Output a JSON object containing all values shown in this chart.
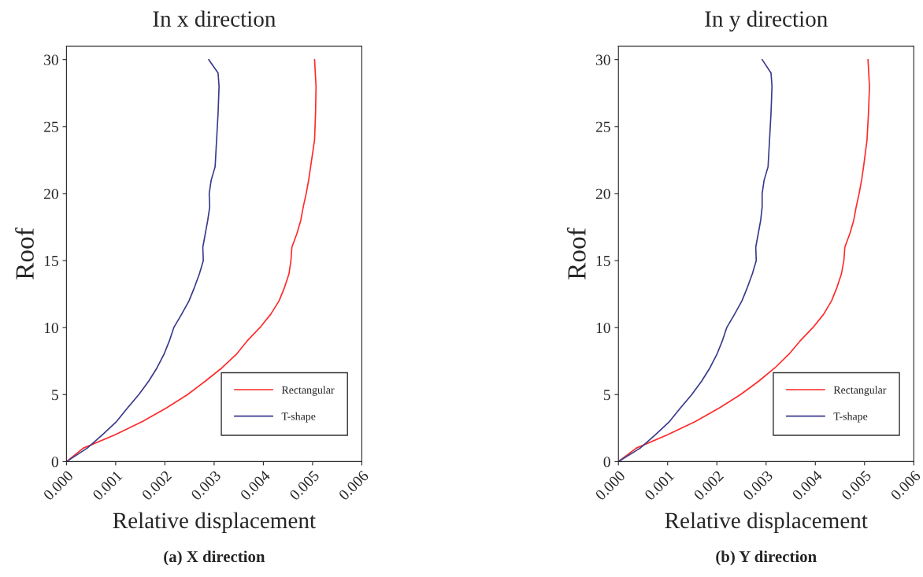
{
  "chart_data": [
    {
      "type": "line",
      "title": "In x direction",
      "xlabel": "Relative displacement",
      "ylabel": "Roof",
      "annotations": [
        "(a) X direction"
      ],
      "xlim": [
        0,
        0.006
      ],
      "xticks": [
        {
          "value": 0,
          "label": "0.000"
        },
        {
          "value": 0.001,
          "label": "0.001"
        },
        {
          "value": 0.002,
          "label": "0.002"
        },
        {
          "value": 0.003,
          "label": "0.003"
        },
        {
          "value": 0.004,
          "label": "0.004"
        },
        {
          "value": 0.005,
          "label": "0.005"
        },
        {
          "value": 0.006,
          "label": "0.006"
        }
      ],
      "ylim": [
        0,
        31
      ],
      "yticks": [
        0,
        5,
        10,
        15,
        20,
        25,
        30
      ],
      "grid": false,
      "legend": "bottom right",
      "series": [
        {
          "name": "Rectangular",
          "color": "#ff2a2a",
          "x": [
            0,
            0.00034,
            0.00099,
            0.00155,
            0.00203,
            0.00246,
            0.00282,
            0.00316,
            0.00345,
            0.00367,
            0.00393,
            0.00415,
            0.00432,
            0.00443,
            0.00452,
            0.00456,
            0.00458,
            0.00468,
            0.00476,
            0.00481,
            0.00487,
            0.00492,
            0.00496,
            0.00504,
            0.00506,
            0.00507,
            0.00504
          ],
          "values": [
            0,
            1,
            2,
            3,
            4,
            5,
            6,
            7,
            8,
            9,
            10,
            11,
            12,
            13,
            14,
            15,
            16,
            17,
            18,
            19,
            20,
            21,
            22,
            24,
            26,
            28,
            30
          ]
        },
        {
          "name": "T-shape",
          "color": "#3a3a8c",
          "x": [
            0,
            0.00042,
            0.00073,
            0.00102,
            0.00124,
            0.00147,
            0.00167,
            0.00184,
            0.00198,
            0.00209,
            0.00218,
            0.00234,
            0.00249,
            0.0026,
            0.0027,
            0.00278,
            0.00277,
            0.00282,
            0.00287,
            0.00291,
            0.0029,
            0.00294,
            0.00302,
            0.00305,
            0.00308,
            0.0031,
            0.00308,
            0.00289
          ],
          "values": [
            0,
            1,
            2,
            3,
            4,
            5,
            6,
            7,
            8,
            9,
            10,
            11,
            12,
            13,
            14,
            15,
            16,
            17,
            18,
            19,
            20,
            21,
            22,
            24,
            26,
            28,
            29,
            30
          ]
        }
      ]
    },
    {
      "type": "line",
      "title": "In y direction",
      "xlabel": "Relative displacement",
      "ylabel": "Roof",
      "annotations": [
        "(b) Y direction"
      ],
      "xlim": [
        0,
        0.006
      ],
      "xticks": [
        {
          "value": 0,
          "label": "0.000"
        },
        {
          "value": 0.001,
          "label": "0.001"
        },
        {
          "value": 0.002,
          "label": "0.002"
        },
        {
          "value": 0.003,
          "label": "0.003"
        },
        {
          "value": 0.004,
          "label": "0.004"
        },
        {
          "value": 0.005,
          "label": "0.005"
        },
        {
          "value": 0.006,
          "label": "0.006"
        }
      ],
      "ylim": [
        0,
        31
      ],
      "yticks": [
        0,
        5,
        10,
        15,
        20,
        25,
        30
      ],
      "grid": false,
      "legend": "bottom right",
      "series": [
        {
          "name": "Rectangular",
          "color": "#ff2a2a",
          "x": [
            0,
            0.00036,
            0.001,
            0.00157,
            0.00205,
            0.00248,
            0.00285,
            0.00318,
            0.00346,
            0.00369,
            0.00395,
            0.00417,
            0.00433,
            0.00444,
            0.00453,
            0.00458,
            0.0046,
            0.0047,
            0.00478,
            0.00483,
            0.00489,
            0.00494,
            0.00498,
            0.00505,
            0.00508,
            0.0051,
            0.00507
          ],
          "values": [
            0,
            1,
            2,
            3,
            4,
            5,
            6,
            7,
            8,
            9,
            10,
            11,
            12,
            13,
            14,
            15,
            16,
            17,
            18,
            19,
            20,
            21,
            22,
            24,
            26,
            28,
            30
          ]
        },
        {
          "name": "T-shape",
          "color": "#3a3a8c",
          "x": [
            0,
            0.00044,
            0.00075,
            0.00104,
            0.00126,
            0.00149,
            0.00169,
            0.00186,
            0.002,
            0.00211,
            0.0022,
            0.00236,
            0.00251,
            0.00262,
            0.00272,
            0.0028,
            0.00279,
            0.00284,
            0.00289,
            0.00292,
            0.00292,
            0.00296,
            0.00304,
            0.00307,
            0.0031,
            0.00312,
            0.0031,
            0.00292
          ],
          "values": [
            0,
            1,
            2,
            3,
            4,
            5,
            6,
            7,
            8,
            9,
            10,
            11,
            12,
            13,
            14,
            15,
            16,
            17,
            18,
            19,
            20,
            21,
            22,
            24,
            26,
            28,
            29,
            30
          ]
        }
      ]
    }
  ]
}
